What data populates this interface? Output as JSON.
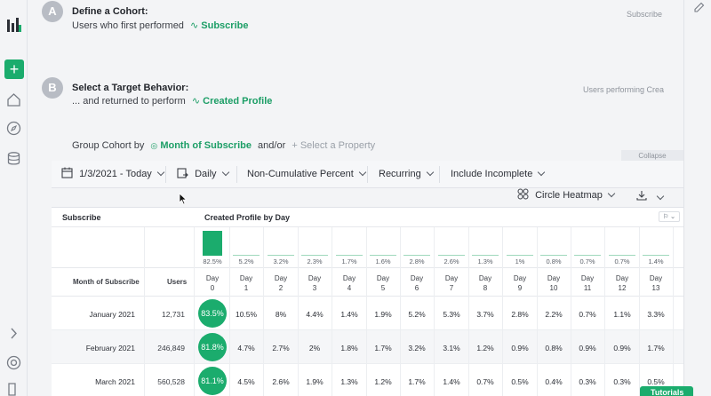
{
  "colors": {
    "accent": "#1bac6d",
    "link": "#1c9e66"
  },
  "rail": {
    "icons": [
      "logo-icon",
      "plus-icon",
      "home-icon",
      "compass-icon",
      "database-icon",
      "chevron-right-icon",
      "lifebuoy-icon",
      "exit-icon"
    ]
  },
  "stepA": {
    "badge": "A",
    "title": "Define a Cohort:",
    "desc": "Users who first performed",
    "event": "Subscribe",
    "right": "Subscribe"
  },
  "stepB": {
    "badge": "B",
    "title": "Select a Target Behavior:",
    "desc": "... and returned to perform",
    "event": "Created Profile",
    "right": "Users performing Crea"
  },
  "group": {
    "label": "Group Cohort by",
    "value": "Month of Subscribe",
    "andor": "and/or",
    "add": "Select a Property"
  },
  "collapse": "Collapse",
  "toolbar": {
    "date": "1/3/2021 - Today",
    "interval": "Daily",
    "measure": "Non-Cumulative Percent",
    "mode": "Recurring",
    "incomplete": "Include Incomplete",
    "viz": "Circle Heatmap"
  },
  "table": {
    "left_header": "Subscribe",
    "right_header": "Created Profile by Day",
    "col_month": "Month of Subscribe",
    "col_users": "Users",
    "days": [
      {
        "a": "Day",
        "b": "0"
      },
      {
        "a": "Day",
        "b": "1"
      },
      {
        "a": "Day",
        "b": "2"
      },
      {
        "a": "Day",
        "b": "3"
      },
      {
        "a": "Day",
        "b": "4"
      },
      {
        "a": "Day",
        "b": "5"
      },
      {
        "a": "Day",
        "b": "6"
      },
      {
        "a": "Day",
        "b": "7"
      },
      {
        "a": "Day",
        "b": "8"
      },
      {
        "a": "Day",
        "b": "9"
      },
      {
        "a": "Day",
        "b": "10"
      },
      {
        "a": "Day",
        "b": "11"
      },
      {
        "a": "Day",
        "b": "12"
      },
      {
        "a": "Day",
        "b": "13"
      }
    ],
    "summary": [
      "82.5%",
      "5.2%",
      "3.2%",
      "2.3%",
      "1.7%",
      "1.6%",
      "2.8%",
      "2.6%",
      "1.3%",
      "1%",
      "0.8%",
      "0.7%",
      "0.7%",
      "1.4%"
    ],
    "summary_values": [
      82.5,
      5.2,
      3.2,
      2.3,
      1.7,
      1.6,
      2.8,
      2.6,
      1.3,
      1,
      0.8,
      0.7,
      0.7,
      1.4
    ],
    "rows": [
      {
        "month": "January 2021",
        "users": "12,731",
        "cells": [
          "83.5%",
          "10.5%",
          "8%",
          "4.4%",
          "1.4%",
          "1.9%",
          "5.2%",
          "5.3%",
          "3.7%",
          "2.8%",
          "2.2%",
          "0.7%",
          "1.1%",
          "3.3%"
        ]
      },
      {
        "month": "February 2021",
        "users": "246,849",
        "cells": [
          "81.8%",
          "4.7%",
          "2.7%",
          "2%",
          "1.8%",
          "1.7%",
          "3.2%",
          "3.1%",
          "1.2%",
          "0.9%",
          "0.8%",
          "0.9%",
          "0.9%",
          "1.7%"
        ]
      },
      {
        "month": "March 2021",
        "users": "560,528",
        "cells": [
          "81.1%",
          "4.5%",
          "2.6%",
          "1.9%",
          "1.3%",
          "1.2%",
          "1.7%",
          "1.4%",
          "0.7%",
          "0.5%",
          "0.4%",
          "0.3%",
          "0.3%",
          "0.5%"
        ]
      }
    ]
  },
  "tutorial": "Tutorials"
}
